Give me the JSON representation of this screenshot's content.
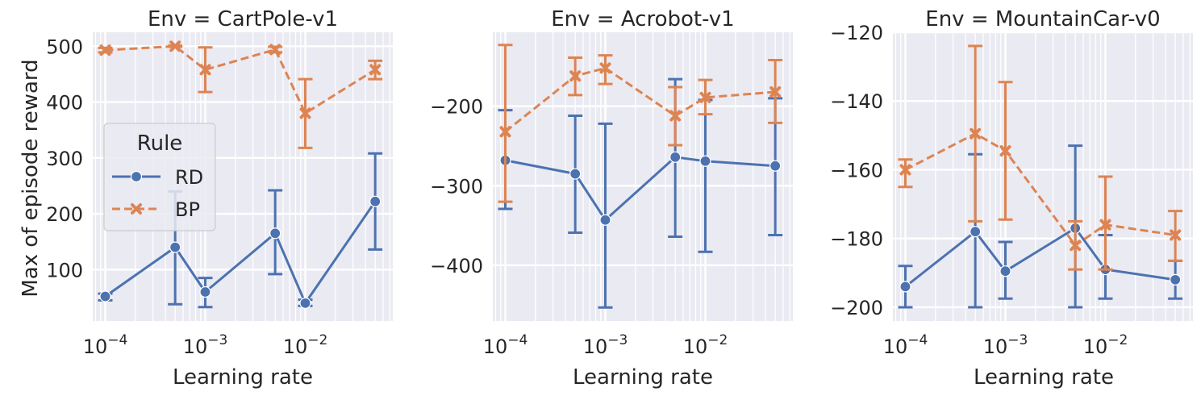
{
  "figure": {
    "ylabel": "Max of episode reward",
    "xlabel": "Learning rate",
    "legend": {
      "title": "Rule",
      "placement": "center-left of first panel",
      "entries": [
        {
          "name": "RD",
          "color": "#4c72b0",
          "marker": "circle",
          "linestyle": "solid"
        },
        {
          "name": "BP",
          "color": "#dd8452",
          "marker": "x",
          "linestyle": "dashed"
        }
      ]
    },
    "background": "#eaeaf2",
    "grid": "on (white, major and minor on log x)"
  },
  "chart_data": [
    {
      "type": "line",
      "title": "Env = CartPole-v1",
      "xscale": "log",
      "xlim": [
        7.5e-05,
        0.075
      ],
      "ylim": [
        8,
        525
      ],
      "xticks": [
        {
          "v": 0.0001,
          "e": "−4"
        },
        {
          "v": 0.001,
          "e": "−3"
        },
        {
          "v": 0.01,
          "e": "−2"
        }
      ],
      "yticks": [
        100,
        200,
        300,
        400,
        500
      ],
      "x": [
        0.0001,
        0.0005,
        0.001,
        0.005,
        0.01,
        0.05
      ],
      "series": [
        {
          "name": "RD",
          "values": [
            52,
            140,
            60,
            165,
            40,
            222
          ],
          "lower": [
            45,
            38,
            33,
            92,
            35,
            136
          ],
          "upper": [
            57,
            240,
            85,
            242,
            46,
            308
          ]
        },
        {
          "name": "BP",
          "values": [
            493,
            500,
            458,
            494,
            380,
            458
          ],
          "lower": [
            489,
            499,
            418,
            489,
            318,
            441
          ],
          "upper": [
            497,
            501,
            498,
            499,
            441,
            474
          ]
        }
      ]
    },
    {
      "type": "line",
      "title": "Env = Acrobot-v1",
      "xscale": "log",
      "xlim": [
        7.5e-05,
        0.075
      ],
      "ylim": [
        -470,
        -107
      ],
      "xticks": [
        {
          "v": 0.0001,
          "e": "−4"
        },
        {
          "v": 0.001,
          "e": "−3"
        },
        {
          "v": 0.01,
          "e": "−2"
        }
      ],
      "yticks": [
        -400,
        -300,
        -200
      ],
      "yticklabels": [
        "−400",
        "−300",
        "−200"
      ],
      "x": [
        0.0001,
        0.0005,
        0.001,
        0.005,
        0.01,
        0.05
      ],
      "series": [
        {
          "name": "RD",
          "values": [
            -268,
            -285,
            -343,
            -264,
            -269,
            -275
          ],
          "lower": [
            -329,
            -359,
            -453,
            -364,
            -383,
            -362
          ],
          "upper": [
            -205,
            -212,
            -222,
            -166,
            -192,
            -190
          ]
        },
        {
          "name": "BP",
          "values": [
            -232,
            -162,
            -152,
            -212,
            -189,
            -182
          ],
          "lower": [
            -320,
            -186,
            -172,
            -249,
            -210,
            -221
          ],
          "upper": [
            -123,
            -139,
            -136,
            -176,
            -167,
            -142
          ]
        }
      ]
    },
    {
      "type": "line",
      "title": "Env = MountainCar-v0",
      "xscale": "log",
      "xlim": [
        7.5e-05,
        0.075
      ],
      "ylim": [
        -204,
        -120
      ],
      "xticks": [
        {
          "v": 0.0001,
          "e": "−4"
        },
        {
          "v": 0.001,
          "e": "−3"
        },
        {
          "v": 0.01,
          "e": "−2"
        }
      ],
      "yticks": [
        -200,
        -180,
        -160,
        -140,
        -120
      ],
      "yticklabels": [
        "−200",
        "−180",
        "−160",
        "−140",
        "−120"
      ],
      "x": [
        0.0001,
        0.0005,
        0.001,
        0.005,
        0.01,
        0.05
      ],
      "series": [
        {
          "name": "RD",
          "values": [
            -194,
            -178,
            -189.5,
            -177,
            -189,
            -192
          ],
          "lower": [
            -200,
            -200,
            -197.5,
            -200,
            -197.5,
            -197.5
          ],
          "upper": [
            -188,
            -155.5,
            -181,
            -153,
            -179,
            -186.5
          ]
        },
        {
          "name": "BP",
          "values": [
            -160,
            -149.5,
            -154.5,
            -182,
            -176,
            -179
          ],
          "lower": [
            -165,
            -175,
            -174.5,
            -189,
            -189,
            -186.5
          ],
          "upper": [
            -157,
            -124,
            -134.5,
            -175,
            -162,
            -172
          ]
        }
      ]
    }
  ]
}
